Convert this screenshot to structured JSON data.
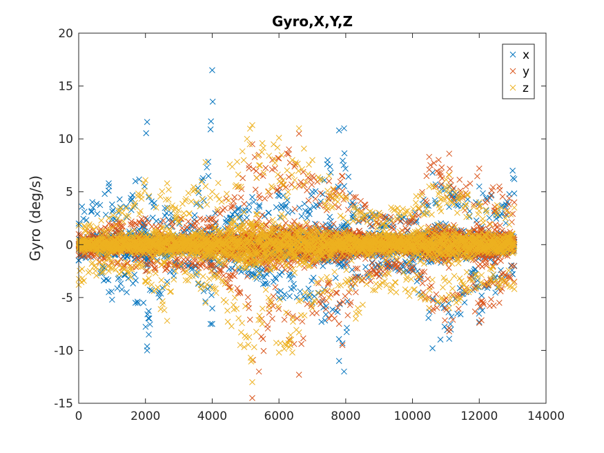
{
  "chart_data": {
    "type": "scatter",
    "title": "Gyro,X,Y,Z",
    "xlabel": "",
    "ylabel": "Gyro (deg/s)",
    "xlim": [
      0,
      14000
    ],
    "ylim": [
      -15,
      20
    ],
    "xticks": [
      0,
      2000,
      4000,
      6000,
      8000,
      10000,
      12000,
      14000
    ],
    "yticks": [
      -15,
      -10,
      -5,
      0,
      5,
      10,
      15,
      20
    ],
    "xtick_labels": [
      "0",
      "2000",
      "4000",
      "6000",
      "8000",
      "10000",
      "12000",
      "14000"
    ],
    "ytick_labels": [
      "-15",
      "-10",
      "-5",
      "0",
      "5",
      "10",
      "15",
      "20"
    ],
    "grid": false,
    "marker": "x",
    "legend_position": "top-right",
    "series": [
      {
        "name": "x",
        "color": "#0072BD",
        "envelope": [
          [
            0,
            -1.5,
            2.0
          ],
          [
            100,
            -1.2,
            3.6
          ],
          [
            900,
            -4.5,
            5.8
          ],
          [
            1000,
            -5.2,
            3.8
          ],
          [
            1700,
            -5.5,
            6.0
          ],
          [
            2050,
            -10.0,
            11.6
          ],
          [
            2100,
            -8.5,
            4.5
          ],
          [
            2650,
            -3.5,
            3.5
          ],
          [
            3300,
            -2.0,
            1.5
          ],
          [
            3950,
            -7.5,
            10.9
          ],
          [
            4000,
            -7.5,
            16.5
          ],
          [
            4100,
            -2.0,
            2.0
          ],
          [
            5200,
            -3.0,
            4.5
          ],
          [
            6000,
            -5.0,
            5.0
          ],
          [
            7000,
            -5.5,
            5.0
          ],
          [
            7800,
            -11.0,
            10.8
          ],
          [
            7950,
            -12.0,
            11.0
          ],
          [
            8200,
            -4.0,
            4.0
          ],
          [
            9000,
            -3.0,
            3.0
          ],
          [
            10000,
            -2.5,
            2.5
          ],
          [
            10600,
            -9.8,
            6.8
          ],
          [
            11100,
            -8.9,
            5.5
          ],
          [
            11900,
            -4.0,
            4.0
          ],
          [
            12000,
            -7.3,
            5.5
          ],
          [
            12800,
            -3.0,
            3.8
          ],
          [
            13000,
            -2.8,
            7.0
          ],
          [
            13050,
            -2.0,
            6.2
          ]
        ]
      },
      {
        "name": "y",
        "color": "#D95319",
        "envelope": [
          [
            0,
            -1.0,
            1.0
          ],
          [
            900,
            -2.0,
            2.0
          ],
          [
            2000,
            -2.5,
            2.5
          ],
          [
            4000,
            -2.5,
            2.5
          ],
          [
            5100,
            -6.0,
            7.5
          ],
          [
            5200,
            -14.5,
            9.5
          ],
          [
            5400,
            -12.0,
            8.5
          ],
          [
            5800,
            -7.0,
            8.0
          ],
          [
            6300,
            -9.0,
            9.0
          ],
          [
            6600,
            -12.3,
            10.5
          ],
          [
            7000,
            -6.5,
            6.5
          ],
          [
            7500,
            -7.0,
            6.0
          ],
          [
            7900,
            -9.5,
            6.5
          ],
          [
            8300,
            -4.5,
            4.5
          ],
          [
            9000,
            -3.0,
            3.0
          ],
          [
            10000,
            -2.5,
            2.5
          ],
          [
            10500,
            -6.0,
            8.3
          ],
          [
            11100,
            -8.2,
            8.6
          ],
          [
            11600,
            -4.5,
            5.5
          ],
          [
            12000,
            -7.4,
            7.2
          ],
          [
            12600,
            -5.5,
            5.5
          ],
          [
            13050,
            -3.5,
            4.0
          ]
        ]
      },
      {
        "name": "z",
        "color": "#EDB120",
        "envelope": [
          [
            0,
            -3.8,
            1.8
          ],
          [
            900,
            -2.5,
            2.5
          ],
          [
            2000,
            -3.5,
            6.1
          ],
          [
            2650,
            -7.2,
            5.8
          ],
          [
            2900,
            -2.5,
            3.5
          ],
          [
            3800,
            -5.5,
            7.8
          ],
          [
            4000,
            -4.0,
            5.0
          ],
          [
            5200,
            -13.0,
            11.3
          ],
          [
            5500,
            -7.5,
            9.6
          ],
          [
            6000,
            -10.2,
            10.1
          ],
          [
            6400,
            -10.2,
            8.0
          ],
          [
            6600,
            -8.3,
            11.0
          ],
          [
            7000,
            -6.0,
            8.0
          ],
          [
            7500,
            -5.0,
            6.5
          ],
          [
            8000,
            -3.5,
            4.5
          ],
          [
            8300,
            -7.0,
            3.5
          ],
          [
            9000,
            -4.0,
            3.0
          ],
          [
            10500,
            -6.0,
            5.5
          ],
          [
            11100,
            -6.0,
            6.6
          ],
          [
            12000,
            -4.0,
            4.0
          ],
          [
            13050,
            -4.2,
            3.5
          ]
        ]
      }
    ]
  }
}
